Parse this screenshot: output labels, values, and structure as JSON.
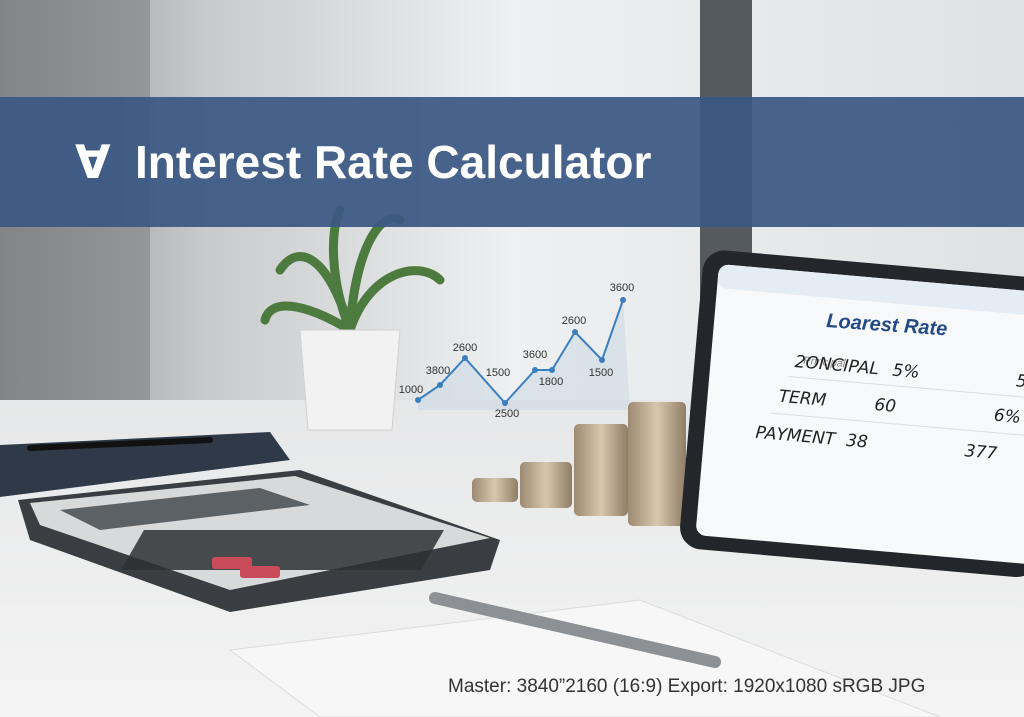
{
  "header": {
    "icon": "∀",
    "title": "Interest Rate Calculator"
  },
  "floating_chart": {
    "labels": [
      "1000",
      "3800",
      "2600",
      "1500",
      "2500",
      "3600",
      "1800",
      "2600",
      "1500",
      "3600"
    ]
  },
  "tablet": {
    "title": "Loarest Rate",
    "subtitle": "Principal",
    "rows": [
      [
        "2ONCIPAL",
        "5%",
        "5"
      ],
      [
        "TERM",
        "60",
        "6%"
      ],
      [
        "PAYMENT",
        "38",
        "377"
      ]
    ]
  },
  "caption": "Master: 3840”2160 (16:9)  Export: 1920x1080 sRGB JPG"
}
